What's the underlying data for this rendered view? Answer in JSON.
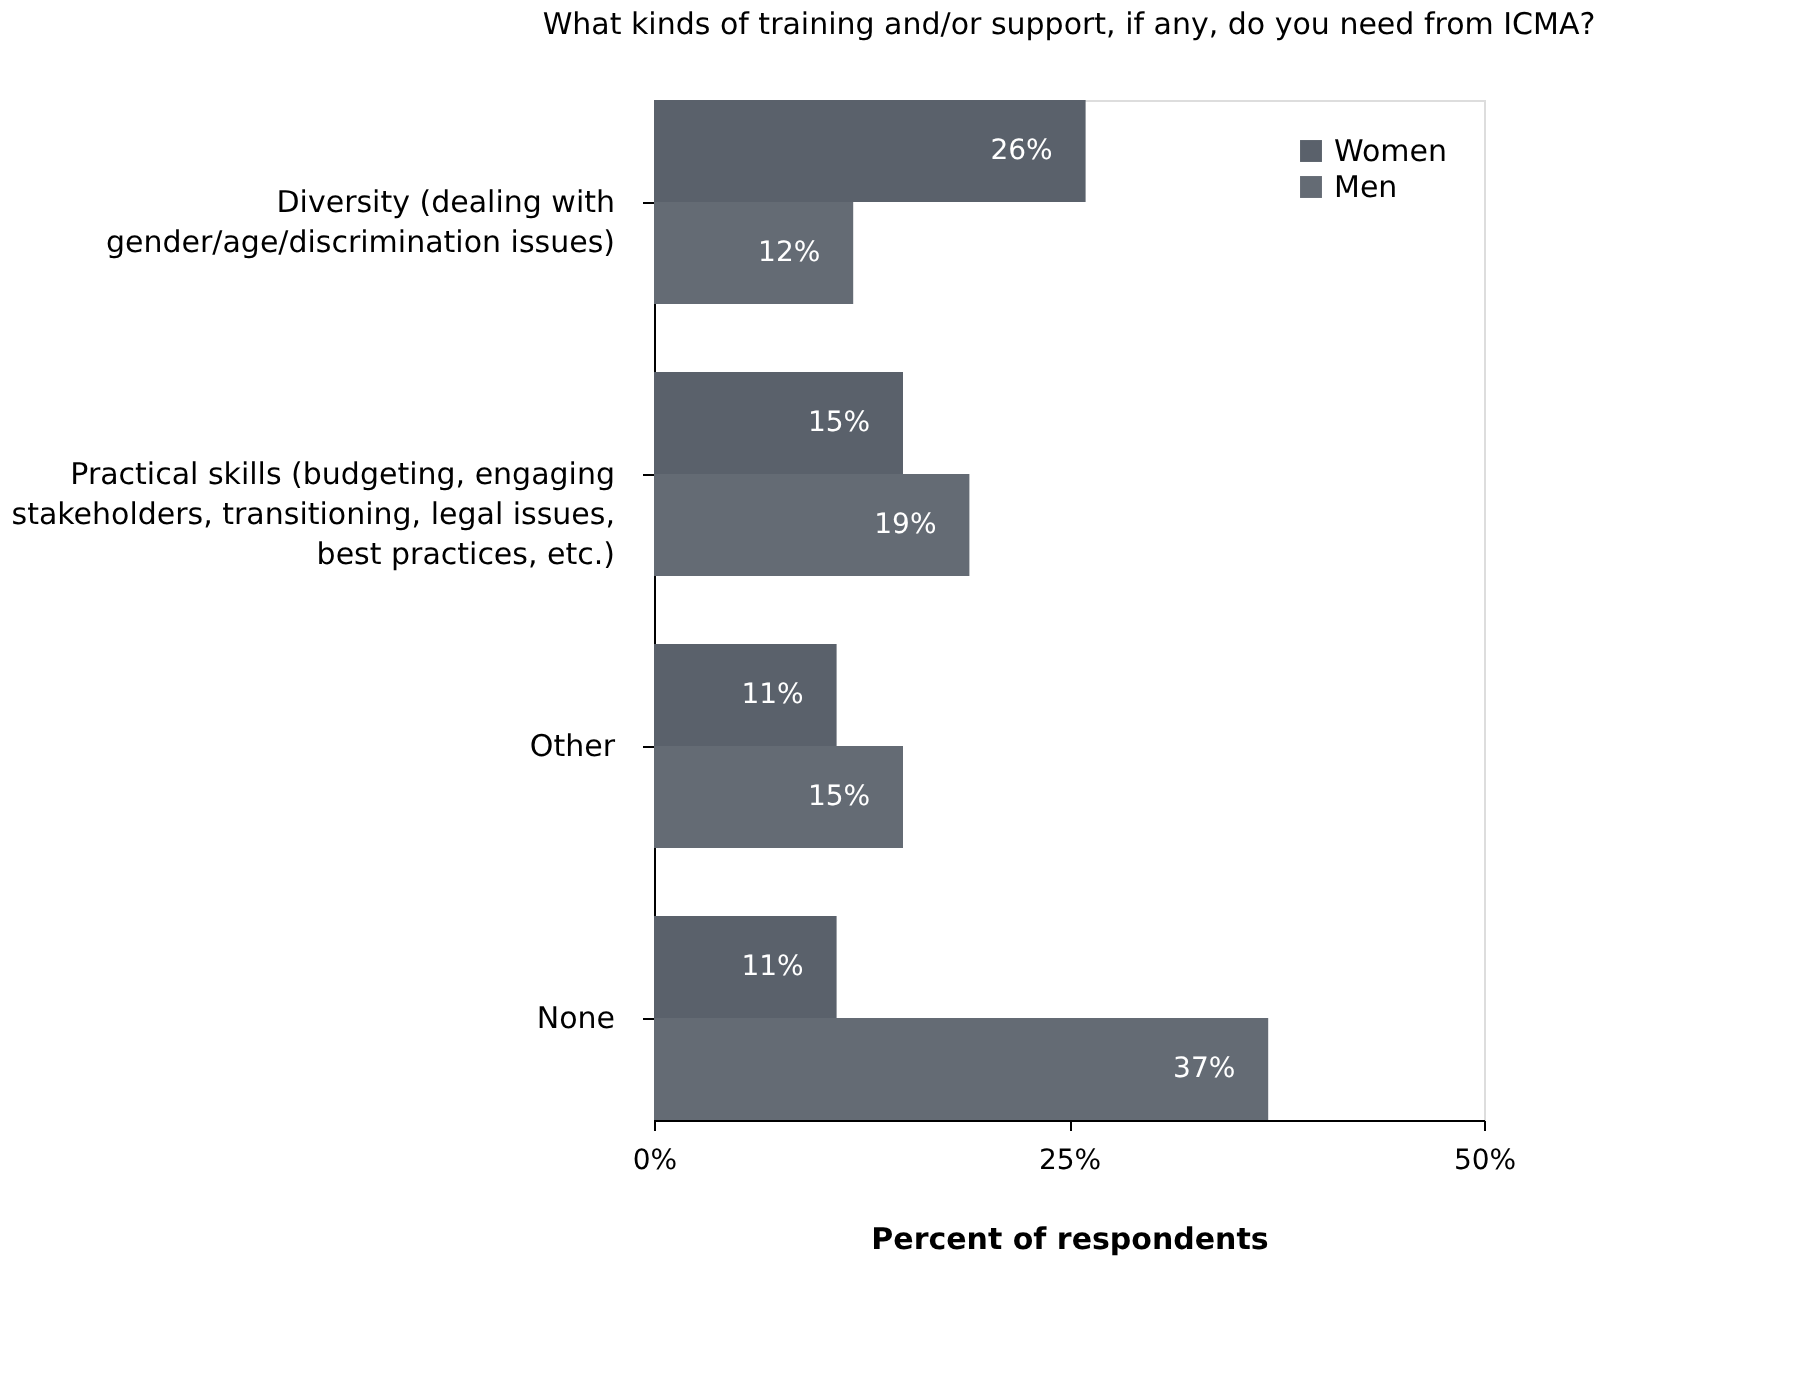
{
  "chart_data": {
    "type": "bar",
    "orientation": "horizontal",
    "title": "What kinds of training and/or support, if any, do you need from ICMA?",
    "categories": [
      "Diversity (dealing with\ngender/age/discrimination issues)",
      "Practical skills (budgeting, engaging\nstakeholders, transitioning, legal issues,\nbest practices, etc.)",
      "Other",
      "None"
    ],
    "series": [
      {
        "name": "Women",
        "color": "#5a616b",
        "values": [
          26,
          15,
          11,
          11
        ],
        "value_labels": [
          "26%",
          "15%",
          "11%",
          "11%"
        ]
      },
      {
        "name": "Men",
        "color": "#646b74",
        "values": [
          12,
          19,
          15,
          37
        ],
        "value_labels": [
          "12%",
          "19%",
          "15%",
          "37%"
        ]
      }
    ],
    "xlim": [
      0,
      50
    ],
    "xticks": [
      {
        "value": 0,
        "label": "0%"
      },
      {
        "value": 25,
        "label": "25%"
      },
      {
        "value": 50,
        "label": "50%"
      }
    ],
    "xlabel": "Percent of respondents",
    "grid": false,
    "legend": "top right"
  }
}
